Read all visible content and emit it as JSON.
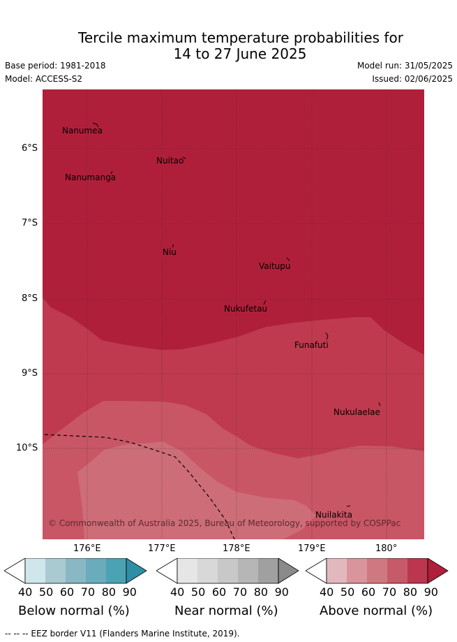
{
  "title": {
    "line1": "Tercile maximum temperature probabilities for",
    "line2": "14 to 27 June 2025"
  },
  "meta": {
    "base_period": "Base period: 1981-2018",
    "model": "Model: ACCESS-S2",
    "model_run": "Model run: 31/05/2025",
    "issued": "Issued: 02/06/2025"
  },
  "map": {
    "lat_labels": [
      "6°S",
      "7°S",
      "8°S",
      "9°S",
      "10°S"
    ],
    "lon_labels": [
      "176°E",
      "177°E",
      "178°E",
      "179°E",
      "180°"
    ],
    "places": [
      "Nanumea",
      "Nuitao",
      "Nanumanga",
      "Niu",
      "Vaitupu",
      "Nukufetau",
      "Funafuti",
      "Nukulaelae",
      "Nuilakita"
    ],
    "copyright": "© Commonwealth of Australia 2025, Bureau of Meteorology, supported by COSPPac",
    "colors": {
      "above_90": "#b01f3a",
      "above_80": "#bf3a4e",
      "above_70": "#c85664",
      "above_60": "#cd6d77",
      "frame_line": "#333333"
    }
  },
  "colorbars": {
    "ticks": [
      "40",
      "50",
      "60",
      "70",
      "80",
      "90"
    ],
    "below": {
      "label": "Below normal (%)",
      "colors": [
        "#cfe6ec",
        "#a9cad0",
        "#89b8c4",
        "#6aacbc",
        "#4aa2b3",
        "#2e8ea6"
      ]
    },
    "near": {
      "label": "Near normal (%)",
      "colors": [
        "#e6e6e6",
        "#d8d8d8",
        "#c8c8c8",
        "#b6b6b6",
        "#a0a0a0",
        "#8a8a8a"
      ]
    },
    "above": {
      "label": "Above normal (%)",
      "colors": [
        "#e2b8bf",
        "#da949c",
        "#cf7880",
        "#c65a68",
        "#bd3650",
        "#b01f3a"
      ]
    }
  },
  "footer": "-- -- -- EEZ border V11 (Flanders Marine Institute, 2019)."
}
